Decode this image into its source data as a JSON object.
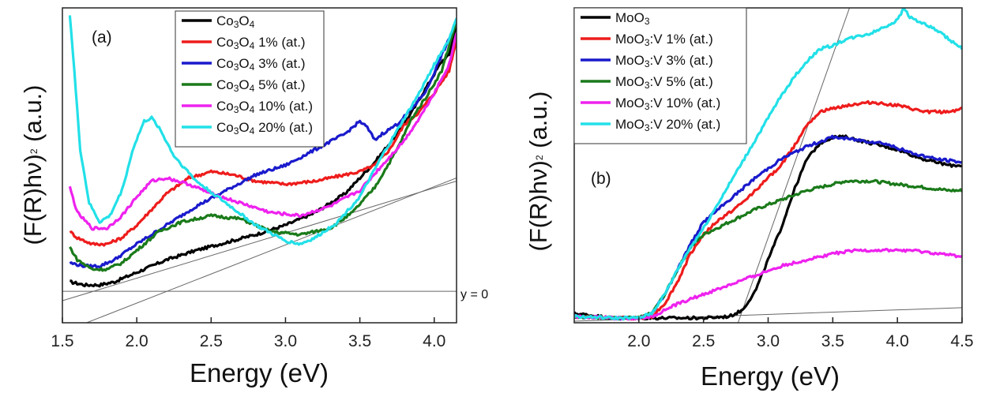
{
  "chart_data": [
    {
      "type": "line",
      "panel_label": "(a)",
      "xlabel": "Energy (eV)",
      "ylabel": "(F(R)hν)",
      "ylabel_sup": "2",
      "ylabel_unit": " (a.u.)",
      "xlim": [
        1.5,
        4.15
      ],
      "ylim": [
        0,
        100
      ],
      "xticks": [
        "1.5",
        "2.0",
        "2.5",
        "3.0",
        "3.5",
        "4.0"
      ],
      "legend_position": "top-right",
      "annotations": [
        {
          "text": "y = 0",
          "y": 10
        }
      ],
      "reference_lines": [
        {
          "x": [
            1.5,
            4.15
          ],
          "y": [
            10,
            10
          ]
        },
        {
          "x": [
            1.5,
            4.15
          ],
          "y": [
            7,
            45
          ]
        },
        {
          "x": [
            1.5,
            4.15
          ],
          "y": [
            -3,
            46
          ]
        }
      ],
      "series": [
        {
          "name": "Co",
          "sub": "3",
          "name2": "O",
          "sub2": "4",
          "suffix": "",
          "color": "#000000",
          "x": [
            1.55,
            1.65,
            1.75,
            1.85,
            2.0,
            2.2,
            2.4,
            2.6,
            2.8,
            3.0,
            3.2,
            3.4,
            3.6,
            3.75,
            3.85,
            3.95,
            4.05,
            4.1,
            4.15
          ],
          "y": [
            13,
            12,
            12,
            13,
            16,
            20,
            23,
            25.5,
            28,
            31,
            35,
            41,
            51,
            60,
            67,
            75,
            83,
            85,
            95
          ]
        },
        {
          "name": "Co",
          "sub": "3",
          "name2": "O",
          "sub2": "4",
          "suffix": " 1% (at.)",
          "color": "#ee1c1c",
          "x": [
            1.55,
            1.6,
            1.7,
            1.8,
            1.9,
            2.0,
            2.1,
            2.2,
            2.35,
            2.5,
            2.65,
            2.8,
            3.0,
            3.2,
            3.4,
            3.5,
            3.6,
            3.7,
            3.8,
            3.9,
            4.0,
            4.1,
            4.15
          ],
          "y": [
            29,
            27,
            25,
            25,
            27,
            31,
            36,
            41,
            46,
            48,
            47,
            45,
            44,
            45,
            47,
            48,
            50,
            55,
            63,
            67,
            73,
            80,
            90
          ]
        },
        {
          "name": "Co",
          "sub": "3",
          "name2": "O",
          "sub2": "4",
          "suffix": " 3% (at.)",
          "color": "#1a1acc",
          "x": [
            1.55,
            1.65,
            1.75,
            1.85,
            2.0,
            2.2,
            2.4,
            2.6,
            2.8,
            3.0,
            3.2,
            3.4,
            3.5,
            3.55,
            3.6,
            3.65,
            3.75,
            3.85,
            3.95,
            4.05,
            4.1,
            4.15
          ],
          "y": [
            19,
            18,
            18,
            20,
            25,
            31,
            37,
            42,
            47,
            50,
            55,
            60,
            64,
            62,
            58,
            60,
            63,
            68,
            74,
            85,
            90,
            95
          ]
        },
        {
          "name": "Co",
          "sub": "3",
          "name2": "O",
          "sub2": "4",
          "suffix": " 5% (at.)",
          "color": "#1a7a1a",
          "x": [
            1.55,
            1.6,
            1.7,
            1.8,
            1.9,
            2.0,
            2.15,
            2.3,
            2.5,
            2.7,
            2.9,
            3.1,
            3.3,
            3.45,
            3.6,
            3.75,
            3.85,
            3.95,
            4.05,
            4.1,
            4.15
          ],
          "y": [
            24,
            20,
            17,
            17,
            19,
            23,
            29,
            32,
            34,
            33,
            29,
            28,
            30,
            35,
            43,
            55,
            65,
            72,
            80,
            88,
            96
          ]
        },
        {
          "name": "Co",
          "sub": "3",
          "name2": "O",
          "sub2": "4",
          "suffix": " 10% (at.)",
          "color": "#ee22ee",
          "x": [
            1.55,
            1.6,
            1.7,
            1.8,
            1.9,
            2.0,
            2.1,
            2.2,
            2.35,
            2.5,
            2.7,
            2.9,
            3.1,
            3.3,
            3.5,
            3.65,
            3.8,
            3.9,
            4.0,
            4.1,
            4.15
          ],
          "y": [
            43,
            35,
            30,
            30,
            34,
            40,
            45,
            46,
            44,
            41,
            38,
            35,
            34,
            37,
            42,
            50,
            58,
            65,
            73,
            82,
            92
          ]
        },
        {
          "name": "Co",
          "sub": "3",
          "name2": "O",
          "sub2": "4",
          "suffix": " 20% (at.)",
          "color": "#22e0e8",
          "x": [
            1.55,
            1.58,
            1.62,
            1.68,
            1.75,
            1.82,
            1.9,
            1.98,
            2.05,
            2.1,
            2.15,
            2.25,
            2.4,
            2.6,
            2.8,
            3.0,
            3.1,
            3.2,
            3.35,
            3.5,
            3.65,
            3.8,
            3.9,
            4.0,
            4.1,
            4.15
          ],
          "y": [
            98,
            80,
            55,
            38,
            32,
            34,
            42,
            56,
            64,
            65,
            62,
            53,
            45,
            38,
            31,
            26,
            25,
            27,
            32,
            40,
            53,
            65,
            73,
            82,
            90,
            97
          ]
        }
      ]
    },
    {
      "type": "line",
      "panel_label": "(b)",
      "xlabel": "Energy (eV)",
      "ylabel": "(F(R)hν)",
      "ylabel_sup": "2",
      "ylabel_unit": " (a.u.)",
      "xlim": [
        1.5,
        4.5
      ],
      "ylim": [
        0,
        100
      ],
      "xticks": [
        "2.0",
        "2.5",
        "3.0",
        "3.5",
        "4.0",
        "4.5"
      ],
      "legend_position": "top-left",
      "reference_lines": [
        {
          "x": [
            1.5,
            4.5
          ],
          "y": [
            0.5,
            4.8
          ]
        },
        {
          "x": [
            2.75,
            3.75
          ],
          "y": [
            -2,
            114
          ]
        }
      ],
      "series": [
        {
          "name": "MoO",
          "sub": "3",
          "name2": "",
          "sub2": "",
          "suffix": "",
          "color": "#000000",
          "x": [
            1.5,
            1.8,
            2.0,
            2.2,
            2.5,
            2.7,
            2.8,
            2.9,
            3.0,
            3.1,
            3.2,
            3.3,
            3.4,
            3.5,
            3.6,
            3.8,
            4.0,
            4.2,
            4.4,
            4.5
          ],
          "y": [
            3,
            1.5,
            1.5,
            1.5,
            1.5,
            2,
            4,
            10,
            20,
            30,
            42,
            52,
            57,
            59,
            59,
            57,
            55,
            52,
            50,
            50
          ]
        },
        {
          "name": "MoO",
          "sub": "3",
          "name2": ":V",
          "sub2": "",
          "suffix": " 1% (at.)",
          "color": "#ee1c1c",
          "x": [
            1.5,
            1.8,
            2.0,
            2.1,
            2.2,
            2.3,
            2.4,
            2.5,
            2.6,
            2.7,
            2.8,
            2.9,
            3.0,
            3.1,
            3.2,
            3.3,
            3.4,
            3.5,
            3.6,
            3.8,
            4.0,
            4.2,
            4.4,
            4.5
          ],
          "y": [
            2,
            1.5,
            1.5,
            2,
            6,
            13,
            22,
            28,
            32,
            35,
            38,
            42,
            46,
            50,
            56,
            63,
            67,
            68,
            69,
            70,
            69,
            67,
            67,
            68
          ]
        },
        {
          "name": "MoO",
          "sub": "3",
          "name2": ":V",
          "sub2": "",
          "suffix": " 3% (at.)",
          "color": "#1a1acc",
          "x": [
            1.5,
            1.8,
            2.0,
            2.1,
            2.2,
            2.3,
            2.4,
            2.5,
            2.7,
            2.9,
            3.1,
            3.3,
            3.5,
            3.7,
            3.9,
            4.1,
            4.3,
            4.5
          ],
          "y": [
            2,
            1.5,
            1.5,
            3,
            9,
            17,
            25,
            32,
            39,
            46,
            52,
            56,
            59,
            58,
            57,
            54,
            52,
            51
          ]
        },
        {
          "name": "MoO",
          "sub": "3",
          "name2": ":V",
          "sub2": "",
          "suffix": " 5% (at.)",
          "color": "#1a7a1a",
          "x": [
            1.5,
            1.8,
            2.0,
            2.1,
            2.2,
            2.3,
            2.4,
            2.5,
            2.7,
            2.9,
            3.1,
            3.3,
            3.5,
            3.6,
            3.8,
            4.0,
            4.2,
            4.4,
            4.5
          ],
          "y": [
            2,
            1.5,
            1.5,
            3,
            9,
            17,
            24,
            28,
            32,
            36,
            39,
            42,
            44,
            45,
            45,
            44,
            43,
            42,
            42
          ]
        },
        {
          "name": "MoO",
          "sub": "3",
          "name2": ":V",
          "sub2": "",
          "suffix": " 10% (at.)",
          "color": "#ee22ee",
          "x": [
            1.5,
            1.8,
            2.0,
            2.1,
            2.2,
            2.3,
            2.5,
            2.7,
            2.9,
            3.1,
            3.3,
            3.5,
            3.7,
            3.9,
            4.1,
            4.3,
            4.5
          ],
          "y": [
            2,
            1.5,
            1.5,
            2,
            4,
            6,
            9,
            12,
            15,
            18,
            20,
            22,
            23,
            23,
            23,
            22,
            21
          ]
        },
        {
          "name": "MoO",
          "sub": "3",
          "name2": ":V",
          "sub2": "",
          "suffix": " 20% (at.)",
          "color": "#22e0e8",
          "x": [
            1.5,
            1.8,
            2.0,
            2.1,
            2.2,
            2.3,
            2.4,
            2.5,
            2.6,
            2.8,
            3.0,
            3.1,
            3.2,
            3.3,
            3.4,
            3.5,
            3.6,
            3.7,
            3.8,
            3.9,
            4.0,
            4.05,
            4.1,
            4.2,
            4.3,
            4.4,
            4.5
          ],
          "y": [
            2,
            1.5,
            1.5,
            3,
            9,
            17,
            24,
            30,
            37,
            51,
            65,
            72,
            78,
            83,
            87,
            88,
            90,
            91,
            92,
            94,
            96,
            100,
            97,
            95,
            93,
            90,
            87
          ]
        }
      ]
    }
  ]
}
